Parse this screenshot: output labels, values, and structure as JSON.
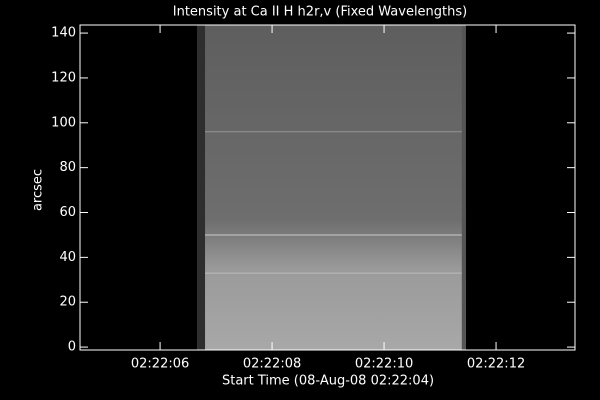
{
  "chart_data": {
    "type": "image",
    "title": "Intensity at Ca II H h2r,v (Fixed Wavelengths)",
    "x_label": "Start Time (08-Aug-08 02:22:04)",
    "y_label": "arcsec",
    "xlim": [
      0.57,
      9.41
    ],
    "xticks": [
      {
        "value": 2,
        "label": "02:22:06"
      },
      {
        "value": 4,
        "label": "02:22:08"
      },
      {
        "value": 6,
        "label": "02:22:10"
      },
      {
        "value": 8,
        "label": "02:22:12"
      }
    ],
    "ylim": [
      -1.3,
      143.6
    ],
    "yticks": [
      0,
      20,
      40,
      60,
      80,
      100,
      120,
      140
    ],
    "image_extent": [
      2.66,
      7.46
    ]
  }
}
